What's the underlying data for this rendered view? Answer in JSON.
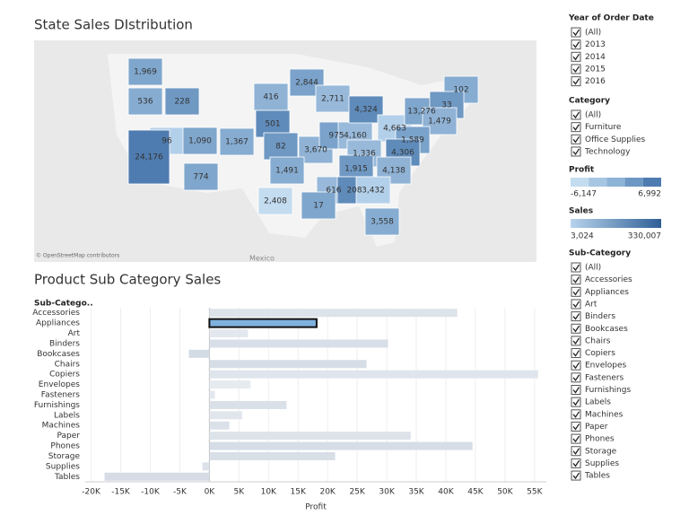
{
  "map": {
    "title": "State Sales DIstribution",
    "attribution": "© OpenStreetMap contributors",
    "place_label": "Mexico",
    "labels": [
      "1,969",
      "536",
      "228",
      "416",
      "2,844",
      "2,711",
      "501",
      "96",
      "1,090",
      "1,367",
      "82",
      "3,670",
      "975",
      "4,160",
      "4,324",
      "4,663",
      "13,276",
      "102",
      "33",
      "1,479",
      "1,589",
      "1,336",
      "4,306",
      "24,176",
      "774",
      "1,491",
      "1,915",
      "4,138",
      "2,408",
      "616",
      "208",
      "3,432",
      "17",
      "3,558"
    ]
  },
  "chart_data": {
    "type": "bar",
    "orientation": "horizontal",
    "title": "Product Sub Category Sales",
    "y_label": "Sub-Catego..",
    "x_label": "Profit",
    "categories": [
      "Accessories",
      "Appliances",
      "Art",
      "Binders",
      "Bookcases",
      "Chairs",
      "Copiers",
      "Envelopes",
      "Fasteners",
      "Furnishings",
      "Labels",
      "Machines",
      "Paper",
      "Phones",
      "Storage",
      "Supplies",
      "Tables"
    ],
    "values": [
      41937,
      18138,
      6528,
      30222,
      -3473,
      26590,
      55618,
      6964,
      950,
      13059,
      5546,
      3385,
      34054,
      44516,
      21279,
      -1189,
      -17725
    ],
    "colors": [
      "#dde3ea",
      "#7fb1de",
      "#e3e8ee",
      "#d8dfe8",
      "#d3dbe5",
      "#d6dde6",
      "#dfe5ec",
      "#e6ebf0",
      "#e3e8ee",
      "#d9e0e8",
      "#e1e6ec",
      "#dbe1e9",
      "#dde3ea",
      "#d6dde6",
      "#d8dfe7",
      "#dce2e9",
      "#d5dce6"
    ],
    "highlight_border": "#111",
    "xlim": [
      -21000,
      57000
    ],
    "xticks": [
      {
        "value": -20000,
        "label": "-20K"
      },
      {
        "value": -15000,
        "label": "-15K"
      },
      {
        "value": -10000,
        "label": "-10K"
      },
      {
        "value": -5000,
        "label": "-5K"
      },
      {
        "value": 0,
        "label": "0K"
      },
      {
        "value": 5000,
        "label": "5K"
      },
      {
        "value": 10000,
        "label": "10K"
      },
      {
        "value": 15000,
        "label": "15K"
      },
      {
        "value": 20000,
        "label": "20K"
      },
      {
        "value": 25000,
        "label": "25K"
      },
      {
        "value": 30000,
        "label": "30K"
      },
      {
        "value": 35000,
        "label": "35K"
      },
      {
        "value": 40000,
        "label": "40K"
      },
      {
        "value": 45000,
        "label": "45K"
      },
      {
        "value": 50000,
        "label": "50K"
      },
      {
        "value": 55000,
        "label": "55K"
      }
    ],
    "grid": true
  },
  "filters": {
    "year": {
      "title": "Year of Order Date",
      "items": [
        "(All)",
        "2013",
        "2014",
        "2015",
        "2016"
      ]
    },
    "category": {
      "title": "Category",
      "items": [
        "(All)",
        "Furniture",
        "Office Supplies",
        "Technology"
      ]
    },
    "sub_category": {
      "title": "Sub-Category",
      "items": [
        "(All)",
        "Accessories",
        "Appliances",
        "Art",
        "Binders",
        "Bookcases",
        "Chairs",
        "Copiers",
        "Envelopes",
        "Fasteners",
        "Furnishings",
        "Labels",
        "Machines",
        "Paper",
        "Phones",
        "Storage",
        "Supplies",
        "Tables"
      ]
    }
  },
  "legends": {
    "profit": {
      "title": "Profit",
      "min": "-6,147",
      "max": "6,992",
      "colors": [
        "#c4dcef",
        "#a7c6e2",
        "#8db3d6",
        "#6d98c4",
        "#4f7cb0"
      ]
    },
    "sales": {
      "title": "Sales",
      "min": "3,024",
      "max": "330,007",
      "gradient": [
        "#b7d3ec",
        "#2f5f96"
      ]
    }
  }
}
